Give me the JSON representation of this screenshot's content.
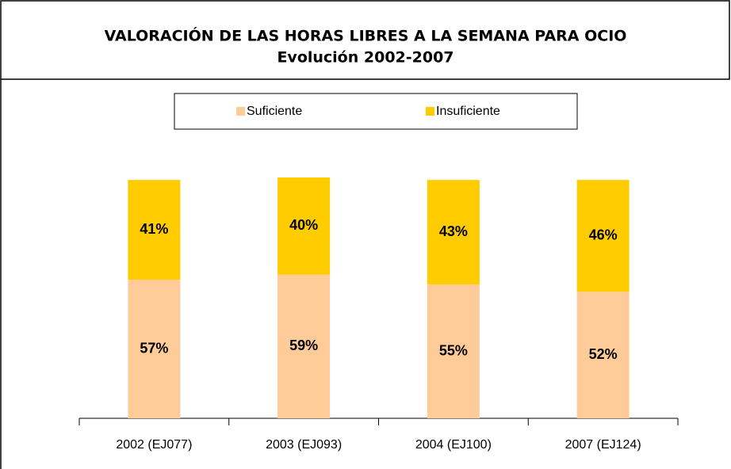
{
  "chart_data": {
    "type": "stacked_bar",
    "title": "VALORACIÓN DE LAS HORAS LIBRES A LA SEMANA PARA OCIO",
    "subtitle": "Evolución 2002-2007",
    "categories": [
      "2002 (EJ077)",
      "2003 (EJ093)",
      "2004 (EJ100)",
      "2007 (EJ124)"
    ],
    "series": [
      {
        "name": "Suficiente",
        "color": "#ffcc99",
        "values": [
          57,
          59,
          55,
          52
        ],
        "value_labels": [
          "57%",
          "59%",
          "55%",
          "52%"
        ]
      },
      {
        "name": "Insuficiente",
        "color": "#ffcc00",
        "values": [
          41,
          40,
          43,
          46
        ],
        "value_labels": [
          "41%",
          "40%",
          "43%",
          "46%"
        ]
      }
    ]
  }
}
